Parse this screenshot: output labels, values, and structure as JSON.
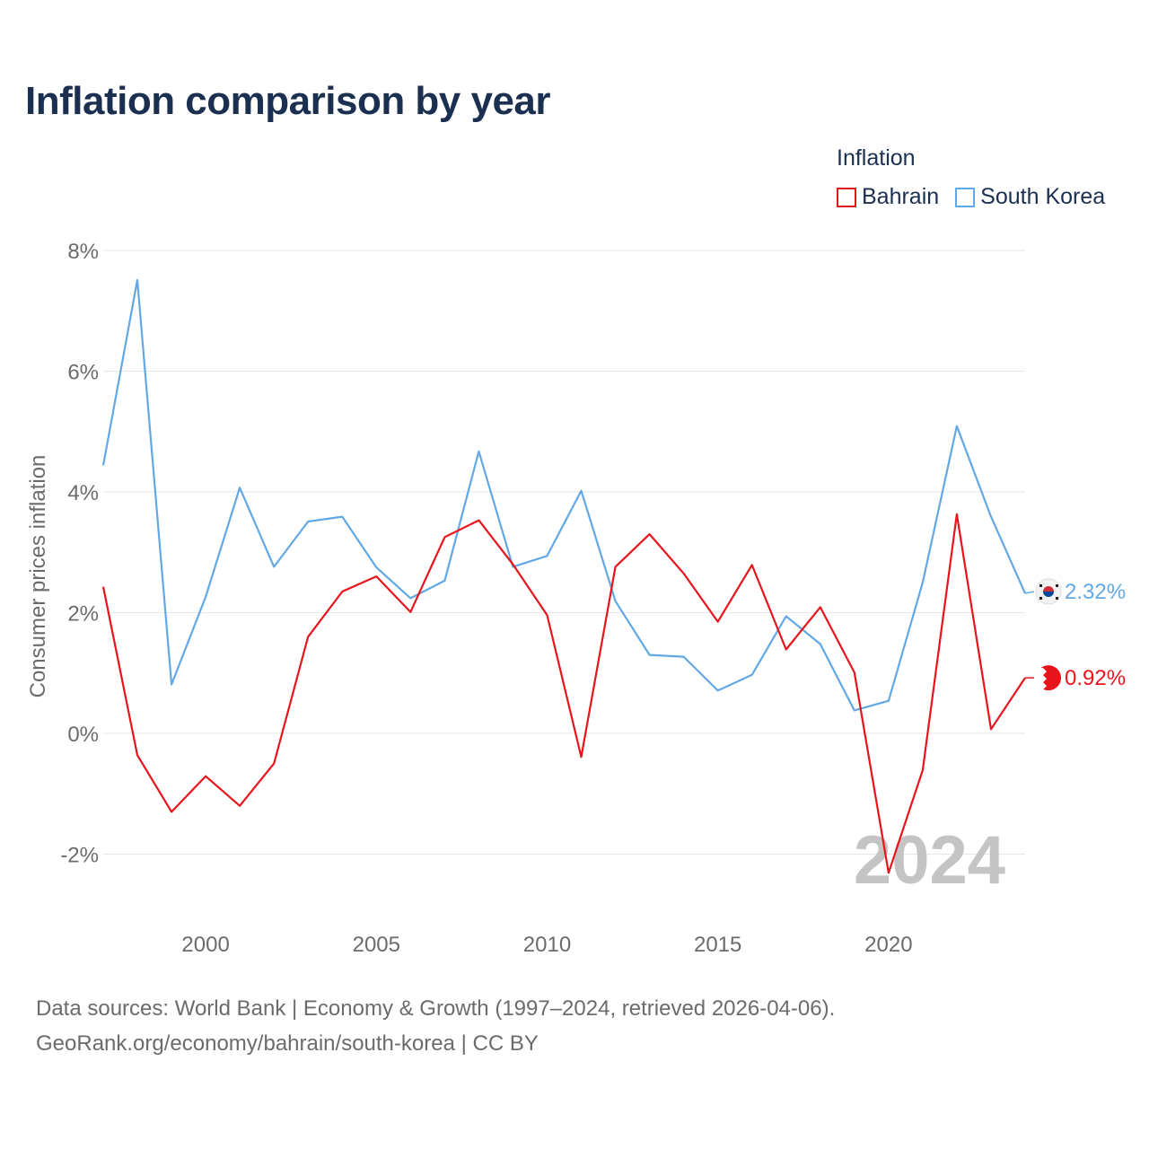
{
  "title": "Inflation comparison by year",
  "legend": {
    "title": "Inflation",
    "items": [
      {
        "label": "Bahrain",
        "color": "#e8141c"
      },
      {
        "label": "South Korea",
        "color": "#62a8e5"
      }
    ]
  },
  "chart_data": {
    "type": "line",
    "ylabel": "Consumer prices inflation",
    "xlabel": "",
    "ylim": [
      -2.9,
      8
    ],
    "xlim": [
      1997,
      2024
    ],
    "yticks": [
      -2,
      0,
      2,
      4,
      6,
      8
    ],
    "ytick_labels": [
      "-2%",
      "0%",
      "2%",
      "4%",
      "6%",
      "8%"
    ],
    "xticks": [
      2000,
      2005,
      2010,
      2015,
      2020
    ],
    "xtick_labels": [
      "2000",
      "2005",
      "2010",
      "2015",
      "2020"
    ],
    "watermark_year": "2024",
    "x": [
      1997,
      1998,
      1999,
      2000,
      2001,
      2002,
      2003,
      2004,
      2005,
      2006,
      2007,
      2008,
      2009,
      2010,
      2011,
      2012,
      2013,
      2014,
      2015,
      2016,
      2017,
      2018,
      2019,
      2020,
      2021,
      2022,
      2023,
      2024
    ],
    "series": [
      {
        "name": "South Korea",
        "color": "#62a8e5",
        "end_label": "2.32%",
        "values": [
          4.44,
          7.51,
          0.81,
          2.26,
          4.07,
          2.76,
          3.51,
          3.59,
          2.75,
          2.24,
          2.53,
          4.67,
          2.76,
          2.94,
          4.02,
          2.19,
          1.3,
          1.27,
          0.71,
          0.97,
          1.94,
          1.48,
          0.38,
          0.54,
          2.5,
          5.09,
          3.59,
          2.32
        ]
      },
      {
        "name": "Bahrain",
        "color": "#e8141c",
        "end_label": "0.92%",
        "values": [
          2.43,
          -0.36,
          -1.3,
          -0.71,
          -1.2,
          -0.5,
          1.6,
          2.35,
          2.6,
          2.01,
          3.25,
          3.53,
          2.8,
          1.96,
          -0.39,
          2.76,
          3.3,
          2.65,
          1.85,
          2.79,
          1.39,
          2.09,
          1.01,
          -2.31,
          -0.61,
          3.63,
          0.07,
          0.92
        ]
      }
    ]
  },
  "footer": {
    "line1": "Data sources: World Bank | Economy & Growth (1997–2024, retrieved 2026-04-06).",
    "line2": "GeoRank.org/economy/bahrain/south-korea | CC BY"
  }
}
